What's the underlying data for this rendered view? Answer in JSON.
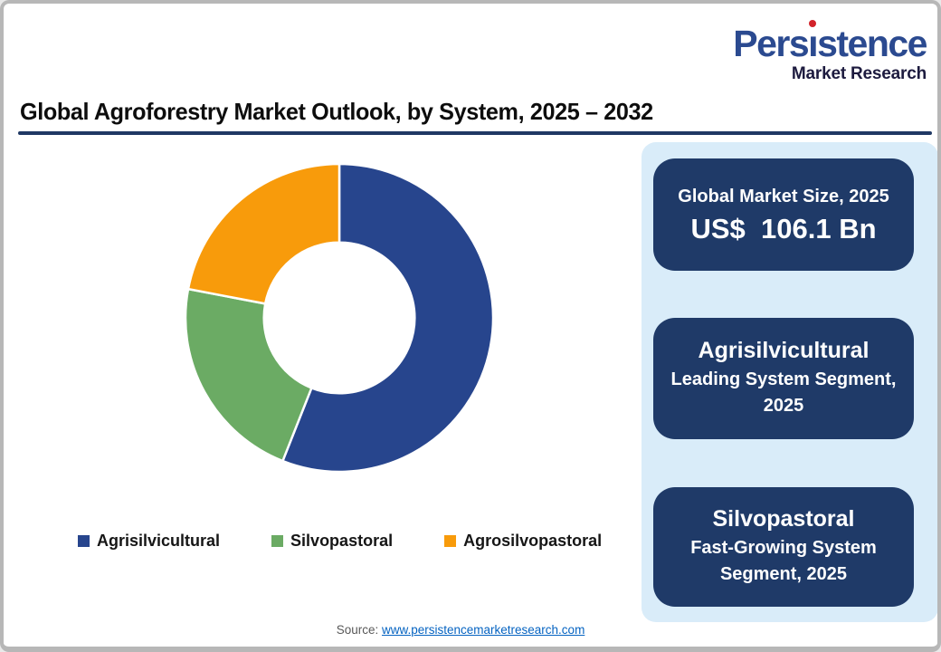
{
  "logo": {
    "brand_full": "Persistence",
    "brand_part_before_dot": "Pers",
    "brand_dotless_i": "ı",
    "brand_part_after_dot": "stence",
    "subtitle": "Market Research",
    "brand_color": "#2B4A90",
    "subtitle_color": "#1D1B3F",
    "dot_color": "#D2232A"
  },
  "title": "Global Agroforestry Market Outlook, by System, 2025 – 2032",
  "title_rule_color": "#1F3864",
  "chart_data": {
    "type": "pie",
    "subtype": "donut",
    "categories": [
      "Agrisilvicultural",
      "Silvopastoral",
      "Agrosilvopastoral"
    ],
    "values": [
      56,
      22,
      22
    ],
    "values_note": "percent share estimated from arc angles; no data labels shown in figure",
    "colors": [
      "#27458D",
      "#6BAB64",
      "#F89B0B"
    ],
    "start_angle_deg": 0,
    "direction": "clockwise",
    "inner_radius_ratio": 0.49,
    "gap_color": "#FFFFFF",
    "legend_position": "bottom"
  },
  "legend": {
    "items": [
      {
        "label": "Agrisilvicultural",
        "color": "#27458D"
      },
      {
        "label": "Silvopastoral",
        "color": "#6BAB64"
      },
      {
        "label": "Agrosilvopastoral",
        "color": "#F89B0B"
      }
    ]
  },
  "panel": {
    "background": "#D9ECF9",
    "card_background": "#1F3A68",
    "cards": [
      {
        "line1": "Global Market Size, 2025",
        "line2": "US$  106.1 Bn"
      },
      {
        "line1": "Agrisilvicultural",
        "line2": "Leading System Segment, 2025"
      },
      {
        "line1": "Silvopastoral",
        "line2": "Fast-Growing System Segment, 2025"
      }
    ]
  },
  "footer": {
    "source_label": "Source:",
    "source_link": "www.persistencemarketresearch.com"
  }
}
